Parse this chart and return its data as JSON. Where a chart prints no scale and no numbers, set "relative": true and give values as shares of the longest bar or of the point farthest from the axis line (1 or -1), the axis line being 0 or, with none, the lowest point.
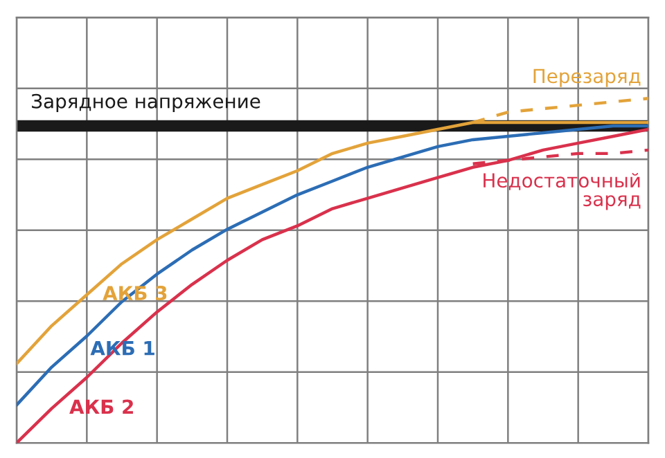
{
  "chart_data": {
    "type": "line",
    "relative": true,
    "grid": true,
    "legend": false,
    "categories": [
      null,
      null,
      null,
      null,
      null,
      null,
      null,
      null,
      null,
      null,
      null,
      null,
      null,
      null,
      null,
      null,
      null,
      null,
      null
    ],
    "series": [
      {
        "name": "АКБ 3",
        "color": "#e3a33a",
        "line_style": "solid",
        "values": [
          0.23,
          0.34,
          0.43,
          0.52,
          0.59,
          0.65,
          0.71,
          0.75,
          0.79,
          0.84,
          0.87,
          0.89,
          0.91,
          0.93,
          0.93,
          0.93,
          0.93,
          0.93,
          0.93
        ]
      },
      {
        "name": "АКБ 1",
        "color": "#2c6db5",
        "line_style": "solid",
        "values": [
          0.11,
          0.22,
          0.31,
          0.41,
          0.49,
          0.56,
          0.62,
          0.67,
          0.72,
          0.76,
          0.8,
          0.83,
          0.86,
          0.88,
          0.89,
          0.9,
          0.91,
          0.92,
          0.92
        ]
      },
      {
        "name": "АКБ 2",
        "color": "#d9314c",
        "line_style": "solid",
        "values": [
          0,
          0.1,
          0.19,
          0.29,
          0.38,
          0.46,
          0.53,
          0.59,
          0.63,
          0.68,
          0.71,
          0.74,
          0.77,
          0.8,
          0.82,
          0.85,
          0.87,
          0.89,
          0.91
        ]
      },
      {
        "name": "Перезаряд",
        "color": "#e3a33a",
        "line_style": "dashed",
        "values": [
          null,
          null,
          null,
          null,
          null,
          null,
          null,
          null,
          null,
          null,
          null,
          null,
          null,
          0.93,
          0.96,
          0.97,
          0.98,
          0.99,
          1.0
        ]
      },
      {
        "name": "Недостаточный\nзаряд",
        "color": "#d9314c",
        "line_style": "dashed",
        "values": [
          null,
          null,
          null,
          null,
          null,
          null,
          null,
          null,
          null,
          null,
          null,
          null,
          null,
          0.81,
          0.82,
          0.83,
          0.84,
          0.84,
          0.85
        ]
      }
    ],
    "ref_lines": [
      {
        "axis": "y",
        "value": 0.92,
        "label": "Зарядное напряжение",
        "color": "#1a1a1a"
      }
    ]
  }
}
